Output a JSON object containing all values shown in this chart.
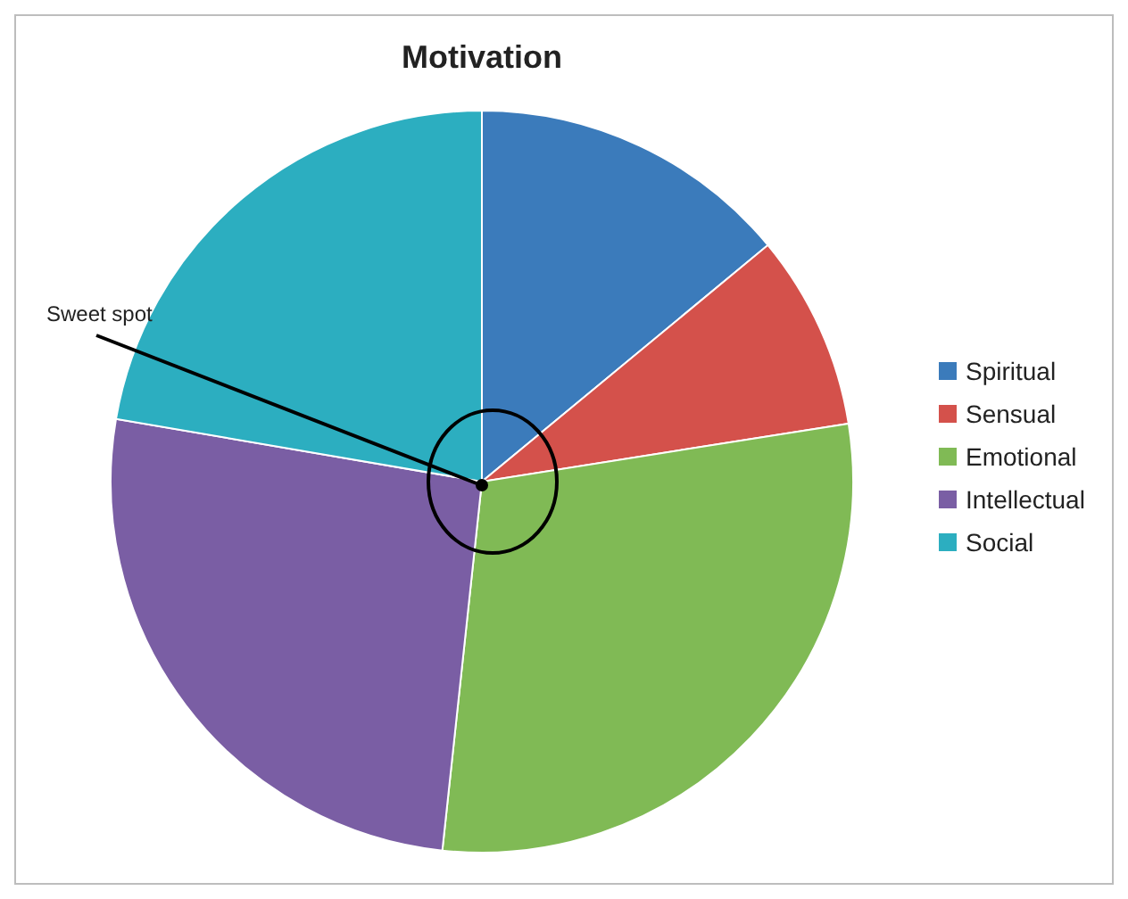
{
  "chart_data": {
    "type": "pie",
    "title": "Motivation",
    "categories": [
      "Spiritual",
      "Sensual",
      "Emotional",
      "Intellectual",
      "Social"
    ],
    "values": [
      14,
      8.5,
      29.2,
      26,
      22.3
    ],
    "colors": [
      "#3b7bbb",
      "#d4514b",
      "#80ba55",
      "#7a5ea4",
      "#2caec0"
    ],
    "legend": "right",
    "annotations": [
      "Sweet spot"
    ]
  }
}
